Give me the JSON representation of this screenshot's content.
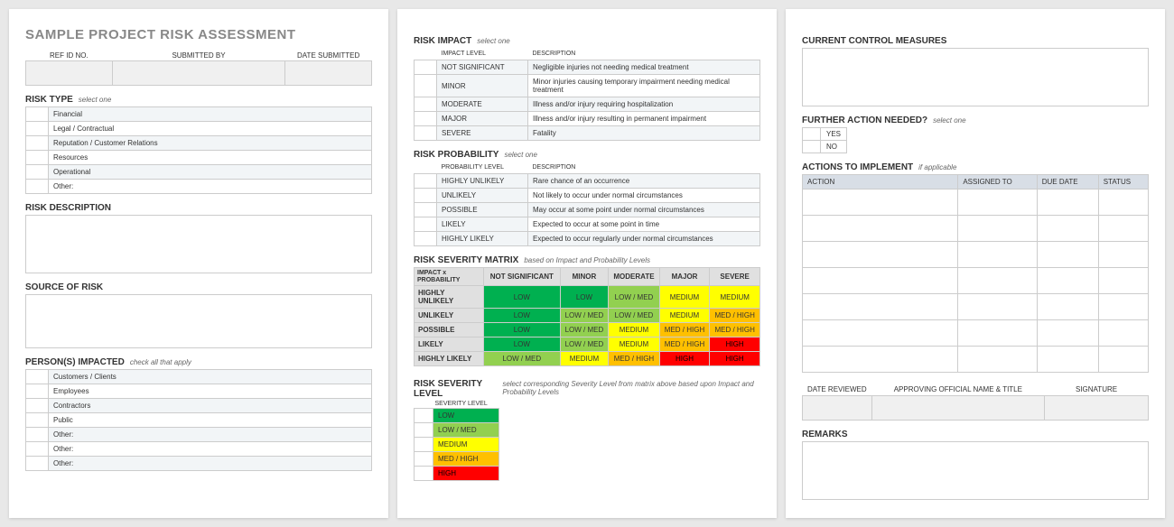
{
  "title": "SAMPLE PROJECT RISK ASSESSMENT",
  "info_headers": [
    "REF ID NO.",
    "SUBMITTED BY",
    "DATE SUBMITTED"
  ],
  "risk_type": {
    "title": "RISK TYPE",
    "hint": "select one",
    "items": [
      "Financial",
      "Legal / Contractual",
      "Reputation / Customer Relations",
      "Resources",
      "Operational",
      "Other:"
    ]
  },
  "risk_description": {
    "title": "RISK DESCRIPTION"
  },
  "source_of_risk": {
    "title": "SOURCE OF RISK"
  },
  "persons_impacted": {
    "title": "PERSON(S) IMPACTED",
    "hint": "check all that apply",
    "items": [
      "Customers / Clients",
      "Employees",
      "Contractors",
      "Public",
      "Other:",
      "Other:",
      "Other:"
    ]
  },
  "risk_impact": {
    "title": "RISK IMPACT",
    "hint": "select one",
    "col1": "IMPACT LEVEL",
    "col2": "DESCRIPTION",
    "rows": [
      {
        "level": "NOT SIGNIFICANT",
        "desc": "Negligible injuries not needing medical treatment"
      },
      {
        "level": "MINOR",
        "desc": "Minor injuries causing temporary impairment needing medical treatment"
      },
      {
        "level": "MODERATE",
        "desc": "Illness and/or injury requiring hospitalization"
      },
      {
        "level": "MAJOR",
        "desc": "Illness and/or injury resulting in permanent impairment"
      },
      {
        "level": "SEVERE",
        "desc": "Fatality"
      }
    ]
  },
  "risk_probability": {
    "title": "RISK PROBABILITY",
    "hint": "select one",
    "col1": "PROBABILITY LEVEL",
    "col2": "DESCRIPTION",
    "rows": [
      {
        "level": "HIGHLY UNLIKELY",
        "desc": "Rare chance of an occurrence"
      },
      {
        "level": "UNLIKELY",
        "desc": "Not likely to occur under normal circumstances"
      },
      {
        "level": "POSSIBLE",
        "desc": "May occur at some point under normal circumstances"
      },
      {
        "level": "LIKELY",
        "desc": "Expected to occur at some point in time"
      },
      {
        "level": "HIGHLY LIKELY",
        "desc": "Expected to occur regularly under normal circumstances"
      }
    ]
  },
  "matrix": {
    "title": "RISK SEVERITY MATRIX",
    "hint": "based on Impact and Probability Levels",
    "corner1": "IMPACT x",
    "corner2": "PROBABILITY",
    "cols": [
      "NOT SIGNIFICANT",
      "MINOR",
      "MODERATE",
      "MAJOR",
      "SEVERE"
    ],
    "rows": [
      {
        "label": "HIGHLY UNLIKELY",
        "cells": [
          {
            "t": "LOW",
            "c": "LOW"
          },
          {
            "t": "LOW",
            "c": "LOW"
          },
          {
            "t": "LOW / MED",
            "c": "LOWMED"
          },
          {
            "t": "MEDIUM",
            "c": "MEDIUM"
          },
          {
            "t": "MEDIUM",
            "c": "MEDIUM"
          }
        ]
      },
      {
        "label": "UNLIKELY",
        "cells": [
          {
            "t": "LOW",
            "c": "LOW"
          },
          {
            "t": "LOW / MED",
            "c": "LOWMED"
          },
          {
            "t": "LOW / MED",
            "c": "LOWMED"
          },
          {
            "t": "MEDIUM",
            "c": "MEDIUM"
          },
          {
            "t": "MED / HIGH",
            "c": "MEDHIGH"
          }
        ]
      },
      {
        "label": "POSSIBLE",
        "cells": [
          {
            "t": "LOW",
            "c": "LOW"
          },
          {
            "t": "LOW / MED",
            "c": "LOWMED"
          },
          {
            "t": "MEDIUM",
            "c": "MEDIUM"
          },
          {
            "t": "MED / HIGH",
            "c": "MEDHIGH"
          },
          {
            "t": "MED / HIGH",
            "c": "MEDHIGH"
          }
        ]
      },
      {
        "label": "LIKELY",
        "cells": [
          {
            "t": "LOW",
            "c": "LOW"
          },
          {
            "t": "LOW / MED",
            "c": "LOWMED"
          },
          {
            "t": "MEDIUM",
            "c": "MEDIUM"
          },
          {
            "t": "MED / HIGH",
            "c": "MEDHIGH"
          },
          {
            "t": "HIGH",
            "c": "HIGH"
          }
        ]
      },
      {
        "label": "HIGHLY LIKELY",
        "cells": [
          {
            "t": "LOW / MED",
            "c": "LOWMED"
          },
          {
            "t": "MEDIUM",
            "c": "MEDIUM"
          },
          {
            "t": "MED / HIGH",
            "c": "MEDHIGH"
          },
          {
            "t": "HIGH",
            "c": "HIGH"
          },
          {
            "t": "HIGH",
            "c": "HIGH"
          }
        ]
      }
    ]
  },
  "severity_level": {
    "title": "RISK SEVERITY LEVEL",
    "hint": "select corresponding Severity Level from matrix above based upon Impact and Probability Levels",
    "header": "SEVERITY LEVEL",
    "levels": [
      {
        "t": "LOW",
        "c": "LOW"
      },
      {
        "t": "LOW / MED",
        "c": "LOWMED"
      },
      {
        "t": "MEDIUM",
        "c": "MEDIUM"
      },
      {
        "t": "MED / HIGH",
        "c": "MEDHIGH"
      },
      {
        "t": "HIGH",
        "c": "HIGH"
      }
    ]
  },
  "control_measures": {
    "title": "CURRENT CONTROL MEASURES"
  },
  "further_action": {
    "title": "FURTHER ACTION NEEDED?",
    "hint": "select one",
    "options": [
      "YES",
      "NO"
    ]
  },
  "actions": {
    "title": "ACTIONS TO IMPLEMENT",
    "hint": "if applicable",
    "cols": [
      "ACTION",
      "ASSIGNED TO",
      "DUE DATE",
      "STATUS"
    ],
    "rowcount": 7
  },
  "signoff": {
    "headers": [
      "DATE REVIEWED",
      "APPROVING OFFICIAL NAME & TITLE",
      "SIGNATURE"
    ]
  },
  "remarks": {
    "title": "REMARKS"
  }
}
